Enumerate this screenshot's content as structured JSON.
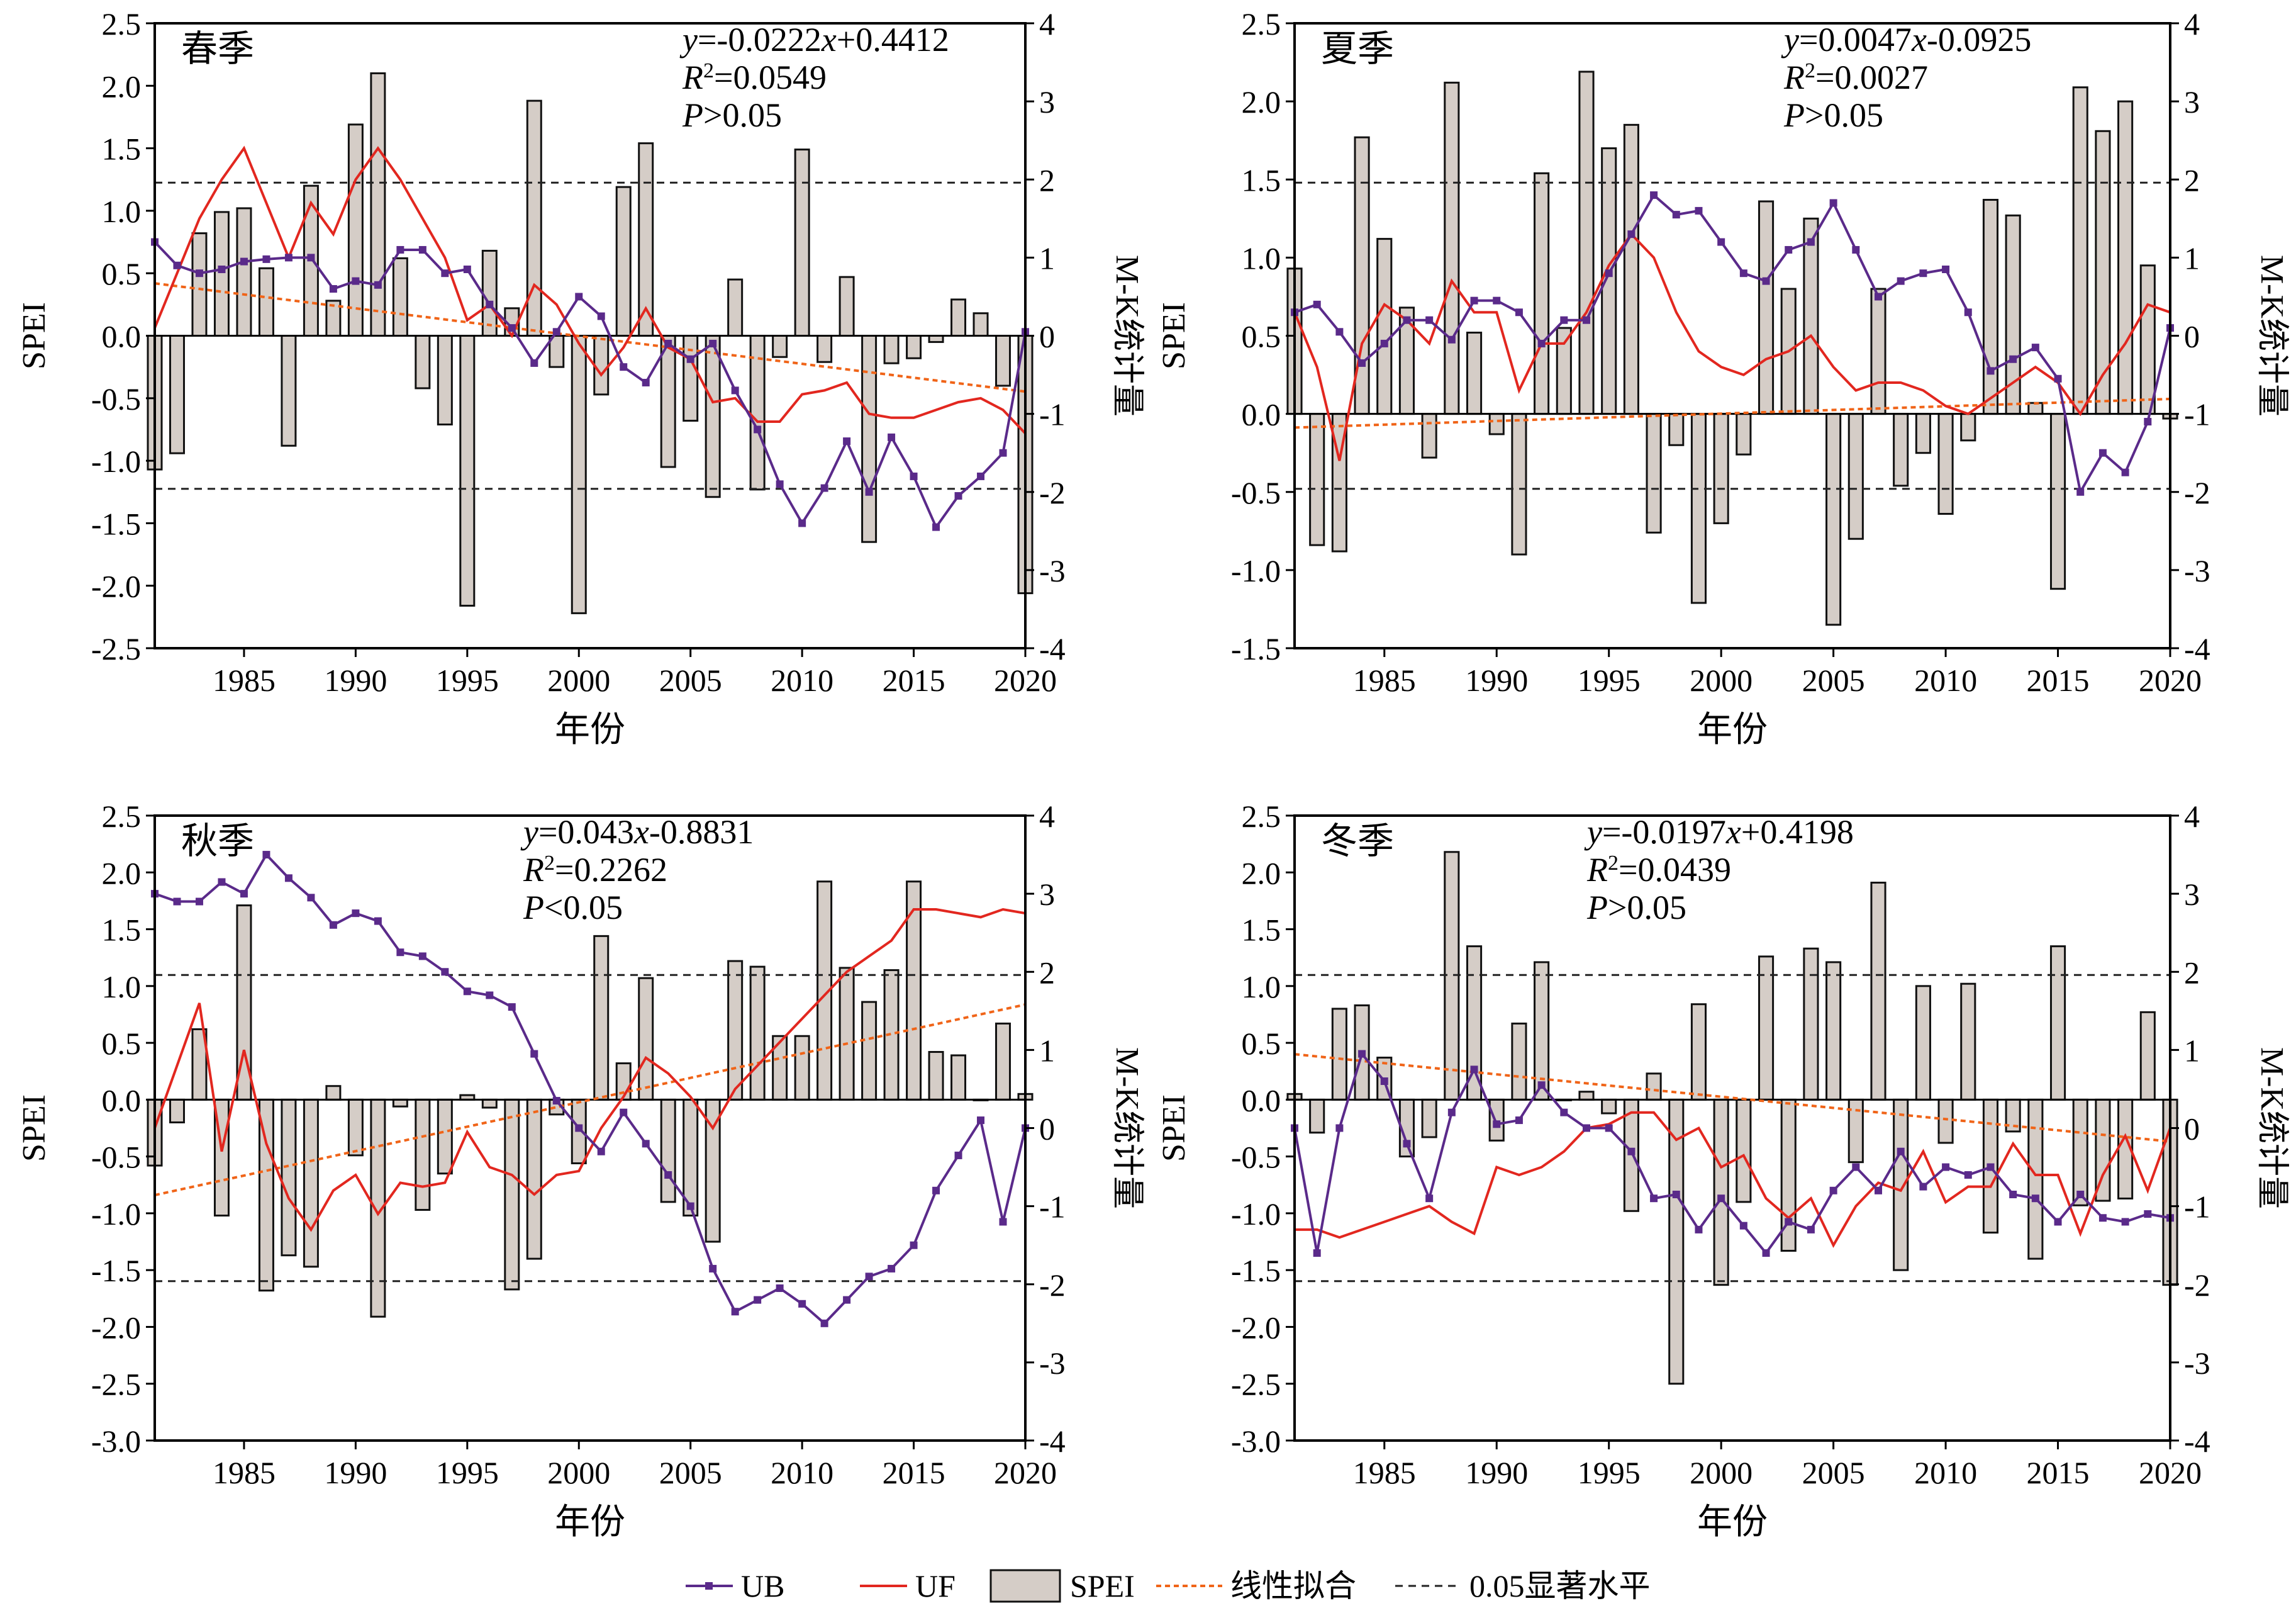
{
  "figure": {
    "bg_color": "#ffffff"
  },
  "colors": {
    "bar_fill": "#d5cdc7",
    "bar_stroke": "#111111",
    "ub": "#5a2a8a",
    "uf": "#e2271f",
    "fit": "#f06418",
    "threshold": "#222222"
  },
  "legend": {
    "placement": "bottom-center",
    "items": [
      {
        "label": "UB",
        "kind": "ub"
      },
      {
        "label": "UF",
        "kind": "uf"
      },
      {
        "label": "SPEI",
        "kind": "bar"
      },
      {
        "label": "线性拟合",
        "kind": "fit"
      },
      {
        "label": "0.05显著水平",
        "kind": "threshold"
      }
    ]
  },
  "chart_data": [
    {
      "type": "bar",
      "season": "春季",
      "eq": {
        "pre": "y",
        "body": "=-0.0222",
        "xvar": "x",
        "tail": "+0.4412"
      },
      "r2": {
        "base": "R",
        "sup": "2",
        "val": "=0.0549"
      },
      "p": {
        "base": "P",
        "val": ">0.05"
      },
      "xlabel": "年份",
      "ylabel": "SPEI",
      "y2label": "M-K统计量",
      "xlim": [
        1981,
        2020
      ],
      "ylim": [
        -2.5,
        2.5
      ],
      "y2lim": [
        -4,
        4
      ],
      "xticks": [
        "1985",
        "1990",
        "1995",
        "2000",
        "2005",
        "2010",
        "2015",
        "2020"
      ],
      "yticks": [
        "2.5",
        "2.0",
        "1.5",
        "1.0",
        "0.5",
        "0.0",
        "-0.5",
        "-1.0",
        "-1.5",
        "-2.0",
        "-2.5"
      ],
      "y2ticks": [
        "4",
        "3",
        "2",
        "1",
        "0",
        "-1",
        "-2",
        "-3",
        "-4"
      ],
      "threshold_y2": [
        1.96,
        -1.96
      ],
      "fit": {
        "slope": -0.0222,
        "intercept": 0.4412
      },
      "years": [
        1981,
        1982,
        1983,
        1984,
        1985,
        1986,
        1987,
        1988,
        1989,
        1990,
        1991,
        1992,
        1993,
        1994,
        1995,
        1996,
        1997,
        1998,
        1999,
        2000,
        2001,
        2002,
        2003,
        2004,
        2005,
        2006,
        2007,
        2008,
        2009,
        2010,
        2011,
        2012,
        2013,
        2014,
        2015,
        2016,
        2017,
        2018,
        2019,
        2020
      ],
      "spei": [
        -1.07,
        -0.94,
        0.82,
        0.99,
        1.02,
        0.54,
        -0.88,
        1.2,
        0.28,
        1.69,
        2.1,
        0.62,
        -0.42,
        -0.71,
        -2.16,
        0.68,
        0.22,
        1.88,
        -0.25,
        -2.22,
        -0.47,
        1.19,
        1.54,
        -1.05,
        -0.68,
        -1.29,
        0.45,
        -1.23,
        -0.17,
        1.49,
        -0.21,
        0.47,
        -1.65,
        -0.22,
        -0.18,
        -0.05,
        0.29,
        0.18,
        -0.4,
        -2.06
      ],
      "uf": [
        0.1,
        0.8,
        1.5,
        2.0,
        2.4,
        1.7,
        1.0,
        1.7,
        1.3,
        2.0,
        2.4,
        2.0,
        1.5,
        1.0,
        0.2,
        0.4,
        0.0,
        0.65,
        0.4,
        -0.1,
        -0.5,
        -0.15,
        0.35,
        -0.15,
        -0.3,
        -0.85,
        -0.8,
        -1.1,
        -1.1,
        -0.75,
        -0.7,
        -0.6,
        -1.0,
        -1.05,
        -1.05,
        -0.95,
        -0.85,
        -0.8,
        -0.95,
        -1.25
      ],
      "ub": [
        1.2,
        0.9,
        0.8,
        0.85,
        0.95,
        0.98,
        1.0,
        1.0,
        0.6,
        0.7,
        0.65,
        1.1,
        1.1,
        0.8,
        0.85,
        0.4,
        0.1,
        -0.35,
        0.05,
        0.5,
        0.25,
        -0.4,
        -0.6,
        -0.1,
        -0.3,
        -0.1,
        -0.7,
        -1.2,
        -1.9,
        -2.4,
        -1.95,
        -1.35,
        -2.0,
        -1.3,
        -1.8,
        -2.45,
        -2.05,
        -1.8,
        -1.5,
        0.05
      ]
    },
    {
      "type": "bar",
      "season": "夏季",
      "eq": {
        "pre": "y",
        "body": "=0.0047",
        "xvar": "x",
        "tail": "-0.0925"
      },
      "r2": {
        "base": "R",
        "sup": "2",
        "val": "=0.0027"
      },
      "p": {
        "base": "P",
        "val": ">0.05"
      },
      "xlabel": "年份",
      "ylabel": "SPEI",
      "y2label": "M-K统计量",
      "xlim": [
        1981,
        2020
      ],
      "ylim": [
        -1.5,
        2.5
      ],
      "y2lim": [
        -4,
        4
      ],
      "xticks": [
        "1985",
        "1990",
        "1995",
        "2000",
        "2005",
        "2010",
        "2015",
        "2020"
      ],
      "yticks": [
        "2.5",
        "2.0",
        "1.5",
        "1.0",
        "0.5",
        "0.0",
        "-0.5",
        "-1.0",
        "-1.5"
      ],
      "y2ticks": [
        "4",
        "3",
        "2",
        "1",
        "0",
        "-1",
        "-2",
        "-3",
        "-4"
      ],
      "threshold_y2": [
        1.96,
        -1.96
      ],
      "fit": {
        "slope": 0.0047,
        "intercept": -0.0925
      },
      "years": [
        1981,
        1982,
        1983,
        1984,
        1985,
        1986,
        1987,
        1988,
        1989,
        1990,
        1991,
        1992,
        1993,
        1994,
        1995,
        1996,
        1997,
        1998,
        1999,
        2000,
        2001,
        2002,
        2003,
        2004,
        2005,
        2006,
        2007,
        2008,
        2009,
        2010,
        2011,
        2012,
        2013,
        2014,
        2015,
        2016,
        2017,
        2018,
        2019,
        2020
      ],
      "spei": [
        0.93,
        -0.84,
        -0.88,
        1.77,
        1.12,
        0.68,
        -0.28,
        2.12,
        0.52,
        -0.13,
        -0.9,
        1.54,
        0.55,
        2.19,
        1.7,
        1.85,
        -0.76,
        -0.2,
        -1.21,
        -0.7,
        -0.26,
        1.36,
        0.8,
        1.25,
        -1.35,
        -0.8,
        0.8,
        -0.46,
        -0.25,
        -0.64,
        -0.17,
        1.37,
        1.27,
        0.07,
        -1.12,
        2.09,
        1.81,
        2.0,
        0.95,
        -0.03
      ],
      "uf": [
        0.3,
        -0.4,
        -1.6,
        -0.1,
        0.4,
        0.2,
        -0.1,
        0.7,
        0.3,
        0.3,
        -0.7,
        -0.1,
        -0.1,
        0.3,
        0.9,
        1.3,
        1.0,
        0.3,
        -0.2,
        -0.4,
        -0.5,
        -0.3,
        -0.2,
        0.0,
        -0.4,
        -0.7,
        -0.6,
        -0.6,
        -0.7,
        -0.9,
        -1.0,
        -0.8,
        -0.6,
        -0.4,
        -0.6,
        -1.0,
        -0.5,
        -0.1,
        0.4,
        0.3
      ],
      "ub": [
        0.3,
        0.4,
        0.05,
        -0.35,
        -0.1,
        0.2,
        0.2,
        -0.05,
        0.45,
        0.45,
        0.3,
        -0.1,
        0.2,
        0.2,
        0.8,
        1.3,
        1.8,
        1.55,
        1.6,
        1.2,
        0.8,
        0.7,
        1.1,
        1.2,
        1.7,
        1.1,
        0.5,
        0.7,
        0.8,
        0.85,
        0.3,
        -0.45,
        -0.3,
        -0.15,
        -0.55,
        -2.0,
        -1.5,
        -1.75,
        -1.1,
        0.1
      ]
    },
    {
      "type": "bar",
      "season": "秋季",
      "eq": {
        "pre": "y",
        "body": "=0.043",
        "xvar": "x",
        "tail": "-0.8831"
      },
      "r2": {
        "base": "R",
        "sup": "2",
        "val": "=0.2262"
      },
      "p": {
        "base": "P",
        "val": "<0.05"
      },
      "xlabel": "年份",
      "ylabel": "SPEI",
      "y2label": "M-K统计量",
      "xlim": [
        1981,
        2020
      ],
      "ylim": [
        -3.0,
        2.5
      ],
      "y2lim": [
        -4,
        4
      ],
      "xticks": [
        "1985",
        "1990",
        "1995",
        "2000",
        "2005",
        "2010",
        "2015",
        "2020"
      ],
      "yticks": [
        "2.5",
        "2.0",
        "1.5",
        "1.0",
        "0.5",
        "0.0",
        "-0.5",
        "-1.0",
        "-1.5",
        "-2.0",
        "-2.5",
        "-3.0"
      ],
      "y2ticks": [
        "4",
        "3",
        "2",
        "1",
        "0",
        "-1",
        "-2",
        "-3",
        "-4"
      ],
      "threshold_y2": [
        1.96,
        -1.96
      ],
      "fit": {
        "slope": 0.043,
        "intercept": -0.8831
      },
      "years": [
        1981,
        1982,
        1983,
        1984,
        1985,
        1986,
        1987,
        1988,
        1989,
        1990,
        1991,
        1992,
        1993,
        1994,
        1995,
        1996,
        1997,
        1998,
        1999,
        2000,
        2001,
        2002,
        2003,
        2004,
        2005,
        2006,
        2007,
        2008,
        2009,
        2010,
        2011,
        2012,
        2013,
        2014,
        2015,
        2016,
        2017,
        2018,
        2019,
        2020
      ],
      "spei": [
        -0.58,
        -0.2,
        0.62,
        -1.02,
        1.71,
        -1.68,
        -1.37,
        -1.47,
        0.12,
        -0.49,
        -1.91,
        -0.06,
        -0.97,
        -0.65,
        0.04,
        -0.07,
        -1.67,
        -1.4,
        -0.13,
        -0.56,
        1.44,
        0.32,
        1.07,
        -0.9,
        -1.02,
        -1.25,
        1.22,
        1.17,
        0.56,
        0.56,
        1.92,
        1.16,
        0.86,
        1.14,
        1.92,
        0.42,
        0.39,
        0.0,
        0.67,
        0.05
      ],
      "uf": [
        0.0,
        0.8,
        1.6,
        -0.3,
        1.0,
        -0.2,
        -0.9,
        -1.3,
        -0.8,
        -0.6,
        -1.1,
        -0.7,
        -0.75,
        -0.7,
        -0.05,
        -0.5,
        -0.6,
        -0.85,
        -0.6,
        -0.55,
        0.0,
        0.4,
        0.9,
        0.7,
        0.4,
        0.0,
        0.5,
        0.8,
        1.1,
        1.4,
        1.7,
        2.0,
        2.2,
        2.4,
        2.8,
        2.8,
        2.75,
        2.7,
        2.8,
        2.75
      ],
      "ub": [
        3.0,
        2.9,
        2.9,
        3.15,
        3.0,
        3.5,
        3.2,
        2.95,
        2.6,
        2.75,
        2.65,
        2.25,
        2.2,
        2.0,
        1.75,
        1.7,
        1.55,
        0.95,
        0.35,
        0.0,
        -0.3,
        0.2,
        -0.2,
        -0.6,
        -1.0,
        -1.8,
        -2.35,
        -2.2,
        -2.05,
        -2.25,
        -2.5,
        -2.2,
        -1.9,
        -1.8,
        -1.5,
        -0.8,
        -0.35,
        0.1,
        -1.2,
        0.0
      ]
    },
    {
      "type": "bar",
      "season": "冬季",
      "eq": {
        "pre": "y",
        "body": "=-0.0197",
        "xvar": "x",
        "tail": "+0.4198"
      },
      "r2": {
        "base": "R",
        "sup": "2",
        "val": "=0.0439"
      },
      "p": {
        "base": "P",
        "val": ">0.05"
      },
      "xlabel": "年份",
      "ylabel": "SPEI",
      "y2label": "M-K统计量",
      "xlim": [
        1981,
        2020
      ],
      "ylim": [
        -3.0,
        2.5
      ],
      "y2lim": [
        -4,
        4
      ],
      "xticks": [
        "1985",
        "1990",
        "1995",
        "2000",
        "2005",
        "2010",
        "2015",
        "2020"
      ],
      "yticks": [
        "2.5",
        "2.0",
        "1.5",
        "1.0",
        "0.5",
        "0.0",
        "-0.5",
        "-1.0",
        "-1.5",
        "-2.0",
        "-2.5",
        "-3.0"
      ],
      "y2ticks": [
        "4",
        "3",
        "2",
        "1",
        "0",
        "-1",
        "-2",
        "-3",
        "-4"
      ],
      "threshold_y2": [
        1.96,
        -1.96
      ],
      "fit": {
        "slope": -0.0197,
        "intercept": 0.4198
      },
      "years": [
        1981,
        1982,
        1983,
        1984,
        1985,
        1986,
        1987,
        1988,
        1989,
        1990,
        1991,
        1992,
        1993,
        1994,
        1995,
        1996,
        1997,
        1998,
        1999,
        2000,
        2001,
        2002,
        2003,
        2004,
        2005,
        2006,
        2007,
        2008,
        2009,
        2010,
        2011,
        2012,
        2013,
        2014,
        2015,
        2016,
        2017,
        2018,
        2019,
        2020
      ],
      "spei": [
        0.05,
        -0.29,
        0.8,
        0.83,
        0.37,
        -0.5,
        -0.33,
        2.18,
        1.35,
        -0.36,
        0.67,
        1.21,
        0.0,
        0.07,
        -0.12,
        -0.98,
        0.23,
        -2.5,
        0.84,
        -1.63,
        -0.9,
        1.26,
        -1.33,
        1.33,
        1.21,
        -0.55,
        1.91,
        -1.5,
        1.0,
        -0.38,
        1.02,
        -1.17,
        -0.28,
        -1.4,
        1.35,
        -0.93,
        -0.89,
        -0.87,
        0.77,
        -1.63
      ],
      "uf": [
        -1.3,
        -1.3,
        -1.4,
        -1.3,
        -1.2,
        -1.1,
        -1.0,
        -1.2,
        -1.35,
        -0.5,
        -0.6,
        -0.5,
        -0.3,
        0.0,
        0.05,
        0.2,
        0.2,
        -0.15,
        0.0,
        -0.5,
        -0.35,
        -0.9,
        -1.15,
        -0.9,
        -1.5,
        -1.0,
        -0.7,
        -0.8,
        -0.3,
        -0.95,
        -0.75,
        -0.75,
        -0.2,
        -0.6,
        -0.6,
        -1.35,
        -0.6,
        -0.1,
        -0.8,
        0.0
      ],
      "ub": [
        0.0,
        -1.6,
        0.0,
        0.95,
        0.6,
        -0.2,
        -0.9,
        0.2,
        0.75,
        0.05,
        0.1,
        0.55,
        0.2,
        0.0,
        0.0,
        -0.3,
        -0.9,
        -0.85,
        -1.3,
        -0.9,
        -1.25,
        -1.6,
        -1.2,
        -1.3,
        -0.8,
        -0.5,
        -0.8,
        -0.3,
        -0.75,
        -0.5,
        -0.6,
        -0.5,
        -0.85,
        -0.9,
        -1.2,
        -0.85,
        -1.15,
        -1.2,
        -1.1,
        -1.15
      ]
    }
  ]
}
